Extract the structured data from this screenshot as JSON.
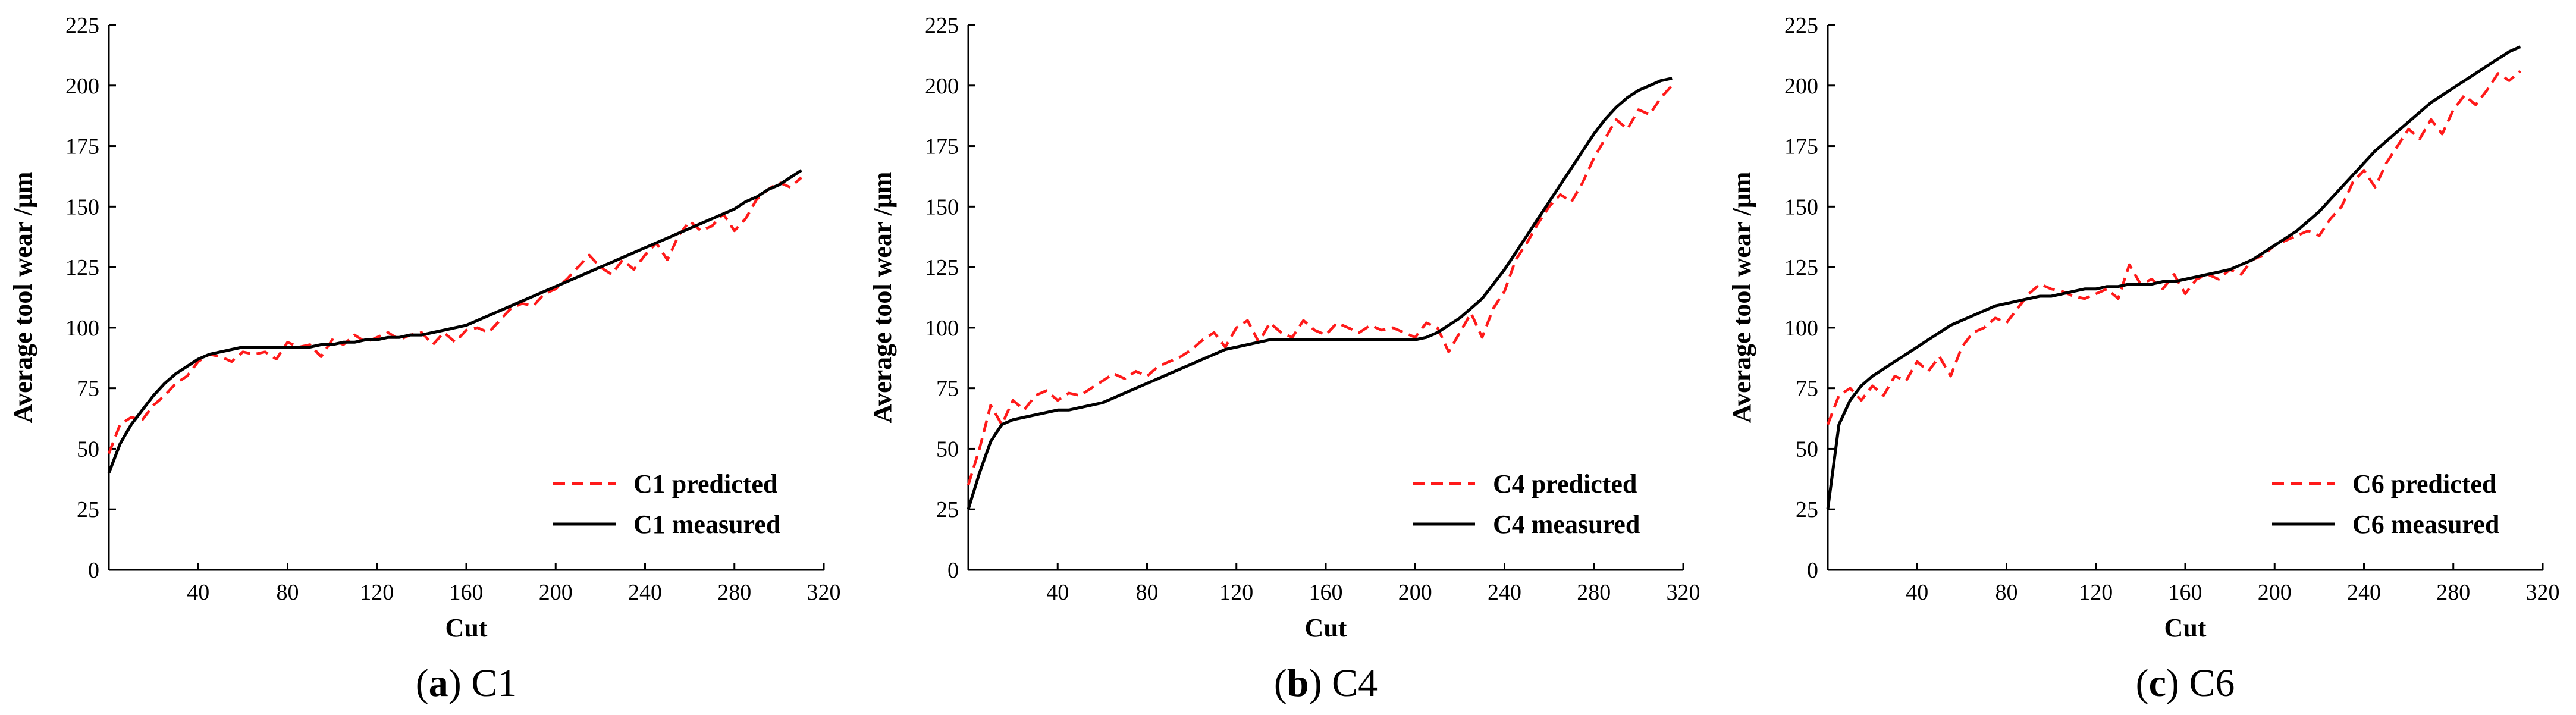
{
  "chart_data": [
    {
      "type": "line",
      "caption": {
        "letter": "a",
        "label": "C1"
      },
      "xlabel": "Cut",
      "ylabel": "Average tool wear /μm",
      "xlim": [
        0,
        320
      ],
      "ylim": [
        0,
        225
      ],
      "xticks": [
        40,
        80,
        120,
        160,
        200,
        240,
        280,
        320
      ],
      "yticks": [
        0,
        25,
        50,
        75,
        100,
        125,
        150,
        175,
        200,
        225
      ],
      "legend_position": "bottom-right",
      "series": [
        {
          "name": "C1 predicted",
          "style": "dashed",
          "color": "#ff1a1a",
          "x": [
            0,
            5,
            10,
            15,
            20,
            25,
            30,
            35,
            40,
            45,
            50,
            55,
            60,
            65,
            70,
            75,
            80,
            85,
            90,
            95,
            100,
            105,
            110,
            115,
            120,
            125,
            130,
            135,
            140,
            145,
            150,
            155,
            160,
            165,
            170,
            175,
            180,
            185,
            190,
            195,
            200,
            205,
            210,
            215,
            220,
            225,
            230,
            235,
            240,
            245,
            250,
            255,
            260,
            265,
            270,
            275,
            280,
            285,
            290,
            295,
            300,
            305,
            310
          ],
          "values": [
            48,
            60,
            63,
            62,
            68,
            72,
            77,
            80,
            86,
            89,
            88,
            86,
            90,
            89,
            90,
            87,
            94,
            92,
            93,
            88,
            95,
            93,
            97,
            94,
            96,
            98,
            95,
            97,
            98,
            93,
            98,
            94,
            99,
            100,
            98,
            103,
            108,
            110,
            109,
            114,
            116,
            120,
            125,
            130,
            125,
            122,
            128,
            124,
            130,
            135,
            128,
            138,
            144,
            140,
            142,
            147,
            140,
            145,
            153,
            157,
            160,
            158,
            162
          ]
        },
        {
          "name": "C1 measured",
          "style": "solid",
          "color": "#000000",
          "x": [
            0,
            5,
            10,
            15,
            20,
            25,
            30,
            35,
            40,
            45,
            50,
            55,
            60,
            65,
            70,
            75,
            80,
            85,
            90,
            95,
            100,
            105,
            110,
            115,
            120,
            125,
            130,
            135,
            140,
            145,
            150,
            155,
            160,
            165,
            170,
            175,
            180,
            185,
            190,
            195,
            200,
            205,
            210,
            215,
            220,
            225,
            230,
            235,
            240,
            245,
            250,
            255,
            260,
            265,
            270,
            275,
            280,
            285,
            290,
            295,
            300,
            305,
            310
          ],
          "values": [
            40,
            52,
            60,
            66,
            72,
            77,
            81,
            84,
            87,
            89,
            90,
            91,
            92,
            92,
            92,
            92,
            92,
            92,
            92,
            93,
            93,
            94,
            94,
            95,
            95,
            96,
            96,
            97,
            97,
            98,
            99,
            100,
            101,
            103,
            105,
            107,
            109,
            111,
            113,
            115,
            117,
            119,
            121,
            123,
            125,
            127,
            129,
            131,
            133,
            135,
            137,
            139,
            141,
            143,
            145,
            147,
            149,
            152,
            154,
            157,
            159,
            162,
            165
          ]
        }
      ]
    },
    {
      "type": "line",
      "caption": {
        "letter": "b",
        "label": "C4"
      },
      "xlabel": "Cut",
      "ylabel": "Average tool wear /μm",
      "xlim": [
        0,
        320
      ],
      "ylim": [
        0,
        225
      ],
      "xticks": [
        40,
        80,
        120,
        160,
        200,
        240,
        280,
        320
      ],
      "yticks": [
        0,
        25,
        50,
        75,
        100,
        125,
        150,
        175,
        200,
        225
      ],
      "legend_position": "bottom-right",
      "series": [
        {
          "name": "C4 predicted",
          "style": "dashed",
          "color": "#ff1a1a",
          "x": [
            0,
            5,
            10,
            15,
            20,
            25,
            30,
            35,
            40,
            45,
            50,
            55,
            60,
            65,
            70,
            75,
            80,
            85,
            90,
            95,
            100,
            105,
            110,
            115,
            120,
            125,
            130,
            135,
            140,
            145,
            150,
            155,
            160,
            165,
            170,
            175,
            180,
            185,
            190,
            195,
            200,
            205,
            210,
            215,
            220,
            225,
            230,
            235,
            240,
            245,
            250,
            255,
            260,
            265,
            270,
            275,
            280,
            285,
            290,
            295,
            300,
            305,
            310,
            315
          ],
          "values": [
            35,
            50,
            68,
            60,
            70,
            66,
            72,
            74,
            70,
            73,
            72,
            75,
            78,
            81,
            79,
            82,
            80,
            84,
            86,
            88,
            91,
            95,
            98,
            92,
            100,
            103,
            94,
            102,
            98,
            96,
            103,
            99,
            97,
            102,
            100,
            98,
            101,
            99,
            100,
            98,
            96,
            102,
            100,
            90,
            98,
            106,
            96,
            108,
            115,
            128,
            135,
            143,
            150,
            155,
            152,
            160,
            170,
            178,
            186,
            182,
            190,
            188,
            195,
            200
          ]
        },
        {
          "name": "C4 measured",
          "style": "solid",
          "color": "#000000",
          "x": [
            0,
            5,
            10,
            15,
            20,
            25,
            30,
            35,
            40,
            45,
            50,
            55,
            60,
            65,
            70,
            75,
            80,
            85,
            90,
            95,
            100,
            105,
            110,
            115,
            120,
            125,
            130,
            135,
            140,
            145,
            150,
            155,
            160,
            165,
            170,
            175,
            180,
            185,
            190,
            195,
            200,
            205,
            210,
            215,
            220,
            225,
            230,
            235,
            240,
            245,
            250,
            255,
            260,
            265,
            270,
            275,
            280,
            285,
            290,
            295,
            300,
            305,
            310,
            315
          ],
          "values": [
            25,
            40,
            53,
            60,
            62,
            63,
            64,
            65,
            66,
            66,
            67,
            68,
            69,
            71,
            73,
            75,
            77,
            79,
            81,
            83,
            85,
            87,
            89,
            91,
            92,
            93,
            94,
            95,
            95,
            95,
            95,
            95,
            95,
            95,
            95,
            95,
            95,
            95,
            95,
            95,
            95,
            96,
            98,
            101,
            104,
            108,
            112,
            118,
            124,
            131,
            138,
            145,
            152,
            159,
            166,
            173,
            180,
            186,
            191,
            195,
            198,
            200,
            202,
            203
          ]
        }
      ]
    },
    {
      "type": "line",
      "caption": {
        "letter": "c",
        "label": "C6"
      },
      "xlabel": "Cut",
      "ylabel": "Average tool wear /μm",
      "xlim": [
        0,
        320
      ],
      "ylim": [
        0,
        225
      ],
      "xticks": [
        40,
        80,
        120,
        160,
        200,
        240,
        280,
        320
      ],
      "yticks": [
        0,
        25,
        50,
        75,
        100,
        125,
        150,
        175,
        200,
        225
      ],
      "legend_position": "bottom-right",
      "series": [
        {
          "name": "C6 predicted",
          "style": "dashed",
          "color": "#ff1a1a",
          "x": [
            0,
            5,
            10,
            15,
            20,
            25,
            30,
            35,
            40,
            45,
            50,
            55,
            60,
            65,
            70,
            75,
            80,
            85,
            90,
            95,
            100,
            105,
            110,
            115,
            120,
            125,
            130,
            135,
            140,
            145,
            150,
            155,
            160,
            165,
            170,
            175,
            180,
            185,
            190,
            195,
            200,
            205,
            210,
            215,
            220,
            225,
            230,
            235,
            240,
            245,
            250,
            255,
            260,
            265,
            270,
            275,
            280,
            285,
            290,
            295,
            300,
            305,
            310
          ],
          "values": [
            60,
            72,
            75,
            70,
            76,
            72,
            80,
            78,
            86,
            82,
            88,
            80,
            92,
            98,
            100,
            104,
            102,
            108,
            114,
            118,
            116,
            115,
            113,
            112,
            114,
            116,
            112,
            126,
            118,
            120,
            116,
            122,
            114,
            120,
            122,
            120,
            124,
            122,
            128,
            130,
            134,
            136,
            138,
            140,
            138,
            145,
            150,
            160,
            165,
            158,
            168,
            175,
            182,
            178,
            186,
            180,
            190,
            196,
            192,
            198,
            205,
            202,
            206
          ]
        },
        {
          "name": "C6 measured",
          "style": "solid",
          "color": "#000000",
          "x": [
            0,
            5,
            10,
            15,
            20,
            25,
            30,
            35,
            40,
            45,
            50,
            55,
            60,
            65,
            70,
            75,
            80,
            85,
            90,
            95,
            100,
            105,
            110,
            115,
            120,
            125,
            130,
            135,
            140,
            145,
            150,
            155,
            160,
            165,
            170,
            175,
            180,
            185,
            190,
            195,
            200,
            205,
            210,
            215,
            220,
            225,
            230,
            235,
            240,
            245,
            250,
            255,
            260,
            265,
            270,
            275,
            280,
            285,
            290,
            295,
            300,
            305,
            310
          ],
          "values": [
            25,
            60,
            70,
            76,
            80,
            83,
            86,
            89,
            92,
            95,
            98,
            101,
            103,
            105,
            107,
            109,
            110,
            111,
            112,
            113,
            113,
            114,
            115,
            116,
            116,
            117,
            117,
            118,
            118,
            118,
            119,
            119,
            120,
            121,
            122,
            123,
            124,
            126,
            128,
            131,
            134,
            137,
            140,
            144,
            148,
            153,
            158,
            163,
            168,
            173,
            177,
            181,
            185,
            189,
            193,
            196,
            199,
            202,
            205,
            208,
            211,
            214,
            216
          ]
        }
      ]
    }
  ]
}
